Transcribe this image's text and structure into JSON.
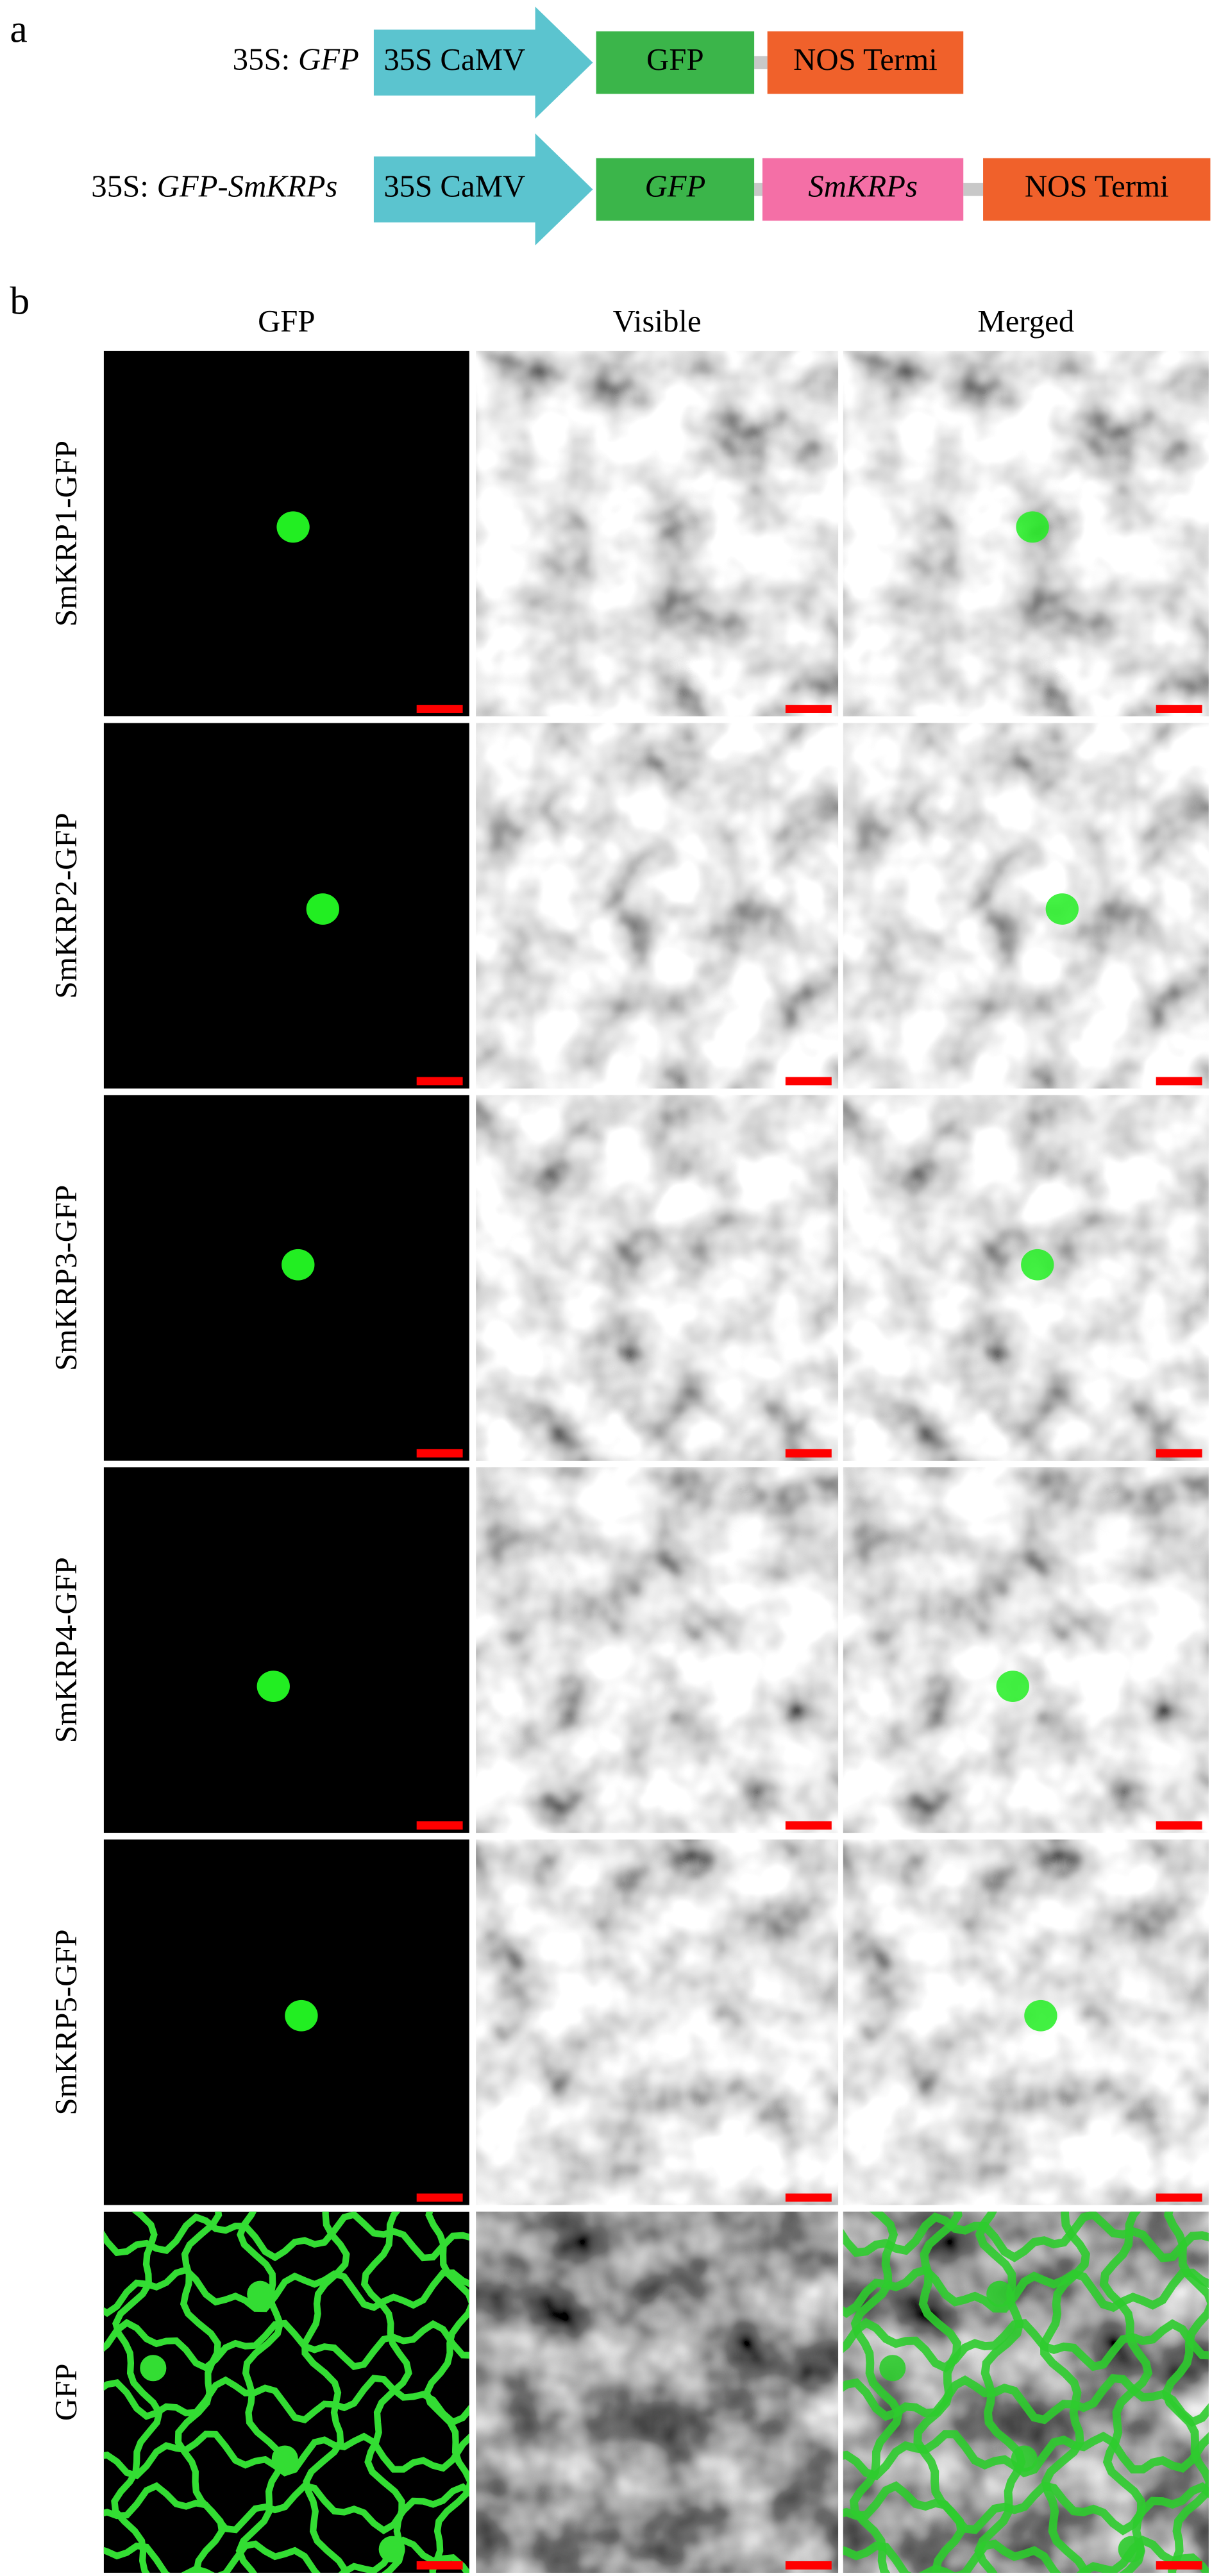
{
  "panel_a": {
    "label": "a",
    "constructs": [
      {
        "prefix": "35S:",
        "name": "GFP",
        "parts": [
          "35S CaMV",
          "GFP",
          "NOS  Termi"
        ]
      },
      {
        "prefix": "35S:",
        "name": "GFP-SmKRPs",
        "parts": [
          "35S CaMV",
          "GFP",
          "SmKRPs",
          "NOS  Termi"
        ]
      }
    ]
  },
  "panel_b": {
    "label": "b",
    "columns": [
      "GFP",
      "Visible",
      "Merged"
    ],
    "rows": [
      "SmKRP1-GFP",
      "SmKRP2-GFP",
      "SmKRP3-GFP",
      "SmKRP4-GFP",
      "SmKRP5-GFP",
      "GFP"
    ]
  }
}
